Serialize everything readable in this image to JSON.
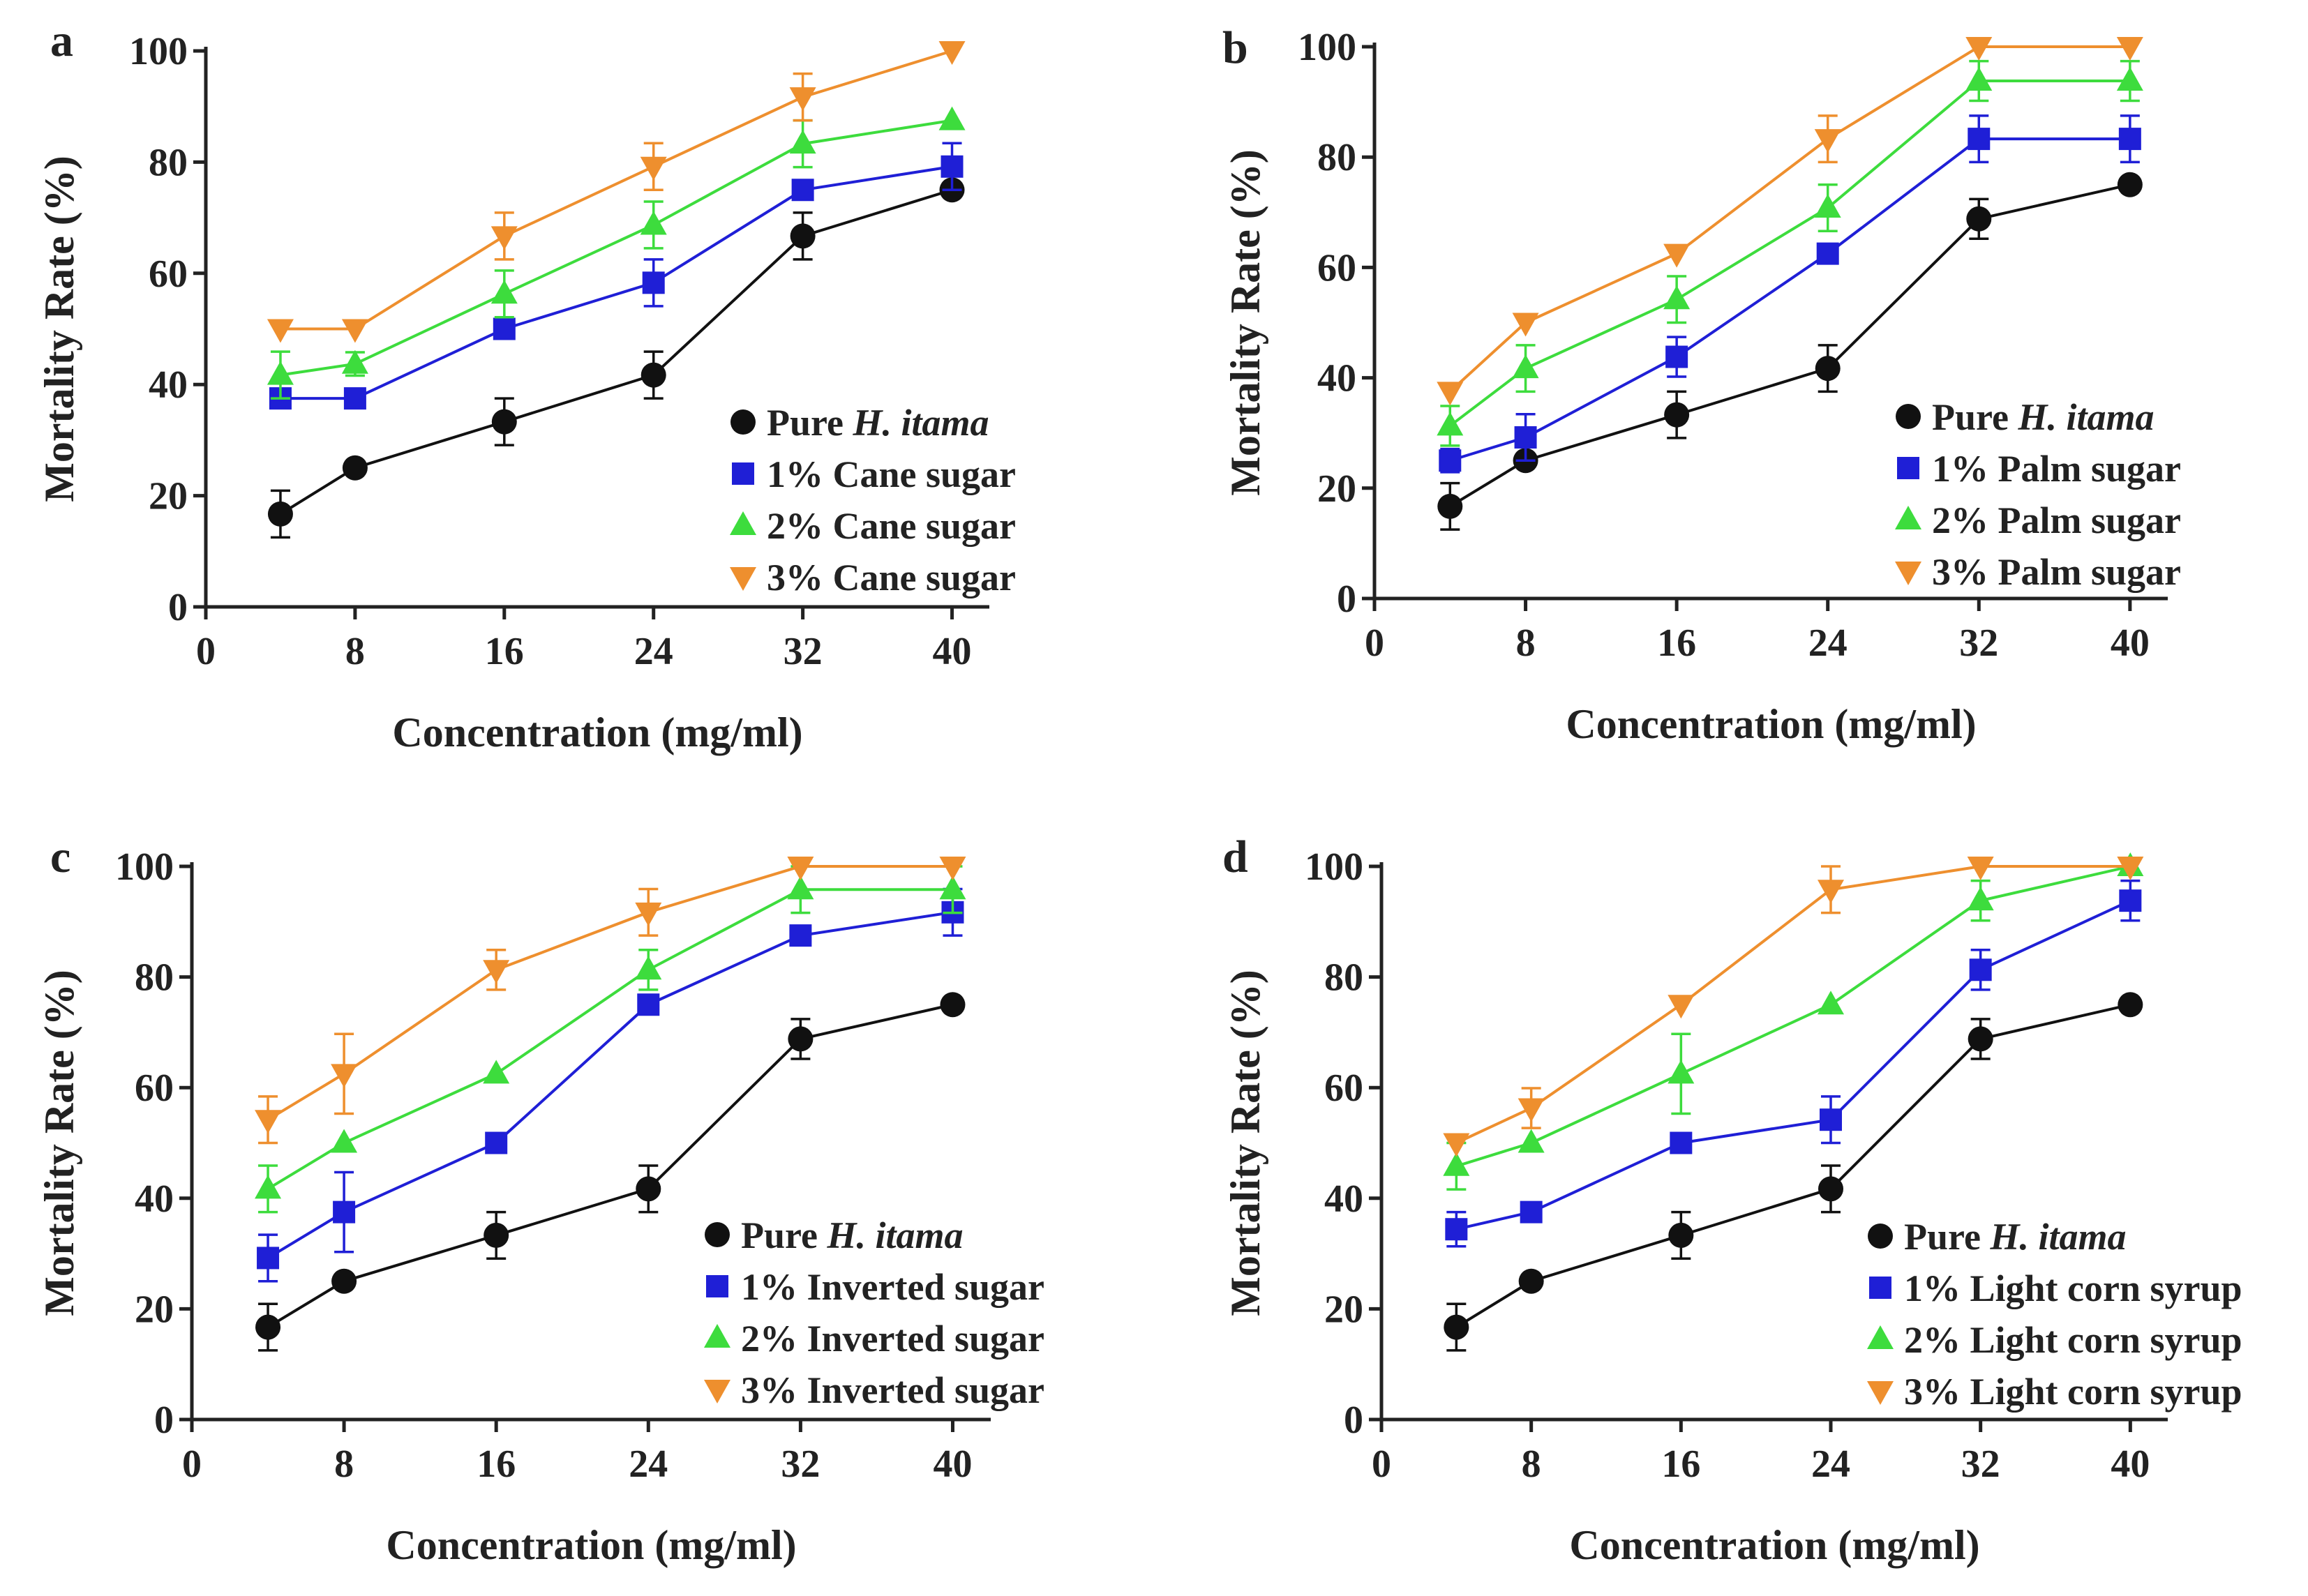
{
  "figure": {
    "panel_letters": [
      "a",
      "b",
      "c",
      "d"
    ]
  },
  "chart_data": [
    {
      "type": "line",
      "panel": "a",
      "xlabel": "Concentration (mg/ml)",
      "ylabel": "Mortality Rate (%)",
      "xlim": [
        0,
        42
      ],
      "ylim": [
        0,
        100
      ],
      "xticks": [
        0,
        8,
        16,
        24,
        32,
        40
      ],
      "yticks": [
        0,
        20,
        40,
        60,
        80,
        100
      ],
      "legend_position": "bottom-right",
      "x": [
        4,
        8,
        16,
        24,
        32,
        40
      ],
      "series": [
        {
          "name_prefix": "Pure ",
          "name_italic": "H. itama",
          "marker": "circle",
          "color": "#111111",
          "values": [
            16.7,
            25,
            33.3,
            41.7,
            66.7,
            75
          ],
          "errors": [
            4.2,
            0,
            4.2,
            4.2,
            4.2,
            0
          ]
        },
        {
          "name_prefix": "1% Cane sugar",
          "name_italic": "",
          "marker": "square",
          "color": "#1f1fd6",
          "values": [
            37.5,
            37.5,
            50,
            58.3,
            75,
            79.2
          ],
          "errors": [
            0,
            0,
            0,
            4.2,
            0,
            4.2
          ]
        },
        {
          "name_prefix": "2% Cane sugar",
          "name_italic": "",
          "marker": "triangle-up",
          "color": "#3ddc3d",
          "values": [
            41.7,
            43.7,
            56.3,
            68.7,
            83.3,
            87.5
          ],
          "errors": [
            4.2,
            2.1,
            4.2,
            4.2,
            4.2,
            0
          ]
        },
        {
          "name_prefix": "3% Cane sugar",
          "name_italic": "",
          "marker": "triangle-down",
          "color": "#ee8f2e",
          "values": [
            50,
            50,
            66.7,
            79.2,
            91.7,
            100
          ],
          "errors": [
            0,
            0,
            4.2,
            4.2,
            4.2,
            0
          ]
        }
      ]
    },
    {
      "type": "line",
      "panel": "b",
      "xlabel": "Concentration (mg/ml)",
      "ylabel": "Mortality Rate (%)",
      "xlim": [
        0,
        42
      ],
      "ylim": [
        0,
        100
      ],
      "xticks": [
        0,
        8,
        16,
        24,
        32,
        40
      ],
      "yticks": [
        0,
        20,
        40,
        60,
        80,
        100
      ],
      "legend_position": "bottom-right",
      "x": [
        4,
        8,
        16,
        24,
        32,
        40
      ],
      "series": [
        {
          "name_prefix": "Pure ",
          "name_italic": "H. itama",
          "marker": "circle",
          "color": "#111111",
          "values": [
            16.7,
            25,
            33.3,
            41.7,
            68.8,
            75
          ],
          "errors": [
            4.2,
            0,
            4.2,
            4.2,
            3.6,
            0
          ]
        },
        {
          "name_prefix": "1% Palm sugar",
          "name_italic": "",
          "marker": "square",
          "color": "#1f1fd6",
          "values": [
            25,
            29.2,
            43.8,
            62.5,
            83.3,
            83.3
          ],
          "errors": [
            2.1,
            4.2,
            3.6,
            0,
            4.2,
            4.2
          ]
        },
        {
          "name_prefix": "2% Palm sugar",
          "name_italic": "",
          "marker": "triangle-up",
          "color": "#3ddc3d",
          "values": [
            31.3,
            41.7,
            54.2,
            70.8,
            93.8,
            93.8
          ],
          "errors": [
            3.6,
            4.2,
            4.2,
            4.2,
            3.6,
            3.6
          ]
        },
        {
          "name_prefix": "3% Palm sugar",
          "name_italic": "",
          "marker": "triangle-down",
          "color": "#ee8f2e",
          "values": [
            37.5,
            50,
            62.5,
            83.3,
            100,
            100
          ],
          "errors": [
            0,
            0,
            0,
            4.2,
            0,
            0
          ]
        }
      ]
    },
    {
      "type": "line",
      "panel": "c",
      "xlabel": "Concentration (mg/ml)",
      "ylabel": "Mortality Rate (%)",
      "xlim": [
        0,
        42
      ],
      "ylim": [
        0,
        100
      ],
      "xticks": [
        0,
        8,
        16,
        24,
        32,
        40
      ],
      "yticks": [
        0,
        20,
        40,
        60,
        80,
        100
      ],
      "legend_position": "bottom-right",
      "x": [
        4,
        8,
        16,
        24,
        32,
        40
      ],
      "series": [
        {
          "name_prefix": "Pure ",
          "name_italic": "H. itama",
          "marker": "circle",
          "color": "#111111",
          "values": [
            16.7,
            25,
            33.3,
            41.7,
            68.8,
            75
          ],
          "errors": [
            4.2,
            0,
            4.2,
            4.2,
            3.6,
            0
          ]
        },
        {
          "name_prefix": "1% Inverted sugar",
          "name_italic": "",
          "marker": "square",
          "color": "#1f1fd6",
          "values": [
            29.2,
            37.5,
            50,
            75,
            87.5,
            91.7
          ],
          "errors": [
            4.2,
            7.2,
            0,
            0,
            0,
            4.2
          ]
        },
        {
          "name_prefix": "2% Inverted sugar",
          "name_italic": "",
          "marker": "triangle-up",
          "color": "#3ddc3d",
          "values": [
            41.7,
            50,
            62.5,
            81.3,
            95.8,
            95.8
          ],
          "errors": [
            4.2,
            0,
            0,
            3.6,
            4.2,
            4.2
          ]
        },
        {
          "name_prefix": "3% Inverted sugar",
          "name_italic": "",
          "marker": "triangle-down",
          "color": "#ee8f2e",
          "values": [
            54.2,
            62.5,
            81.3,
            91.7,
            100,
            100
          ],
          "errors": [
            4.2,
            7.2,
            3.6,
            4.2,
            0,
            0
          ]
        }
      ]
    },
    {
      "type": "line",
      "panel": "d",
      "xlabel": "Concentration (mg/ml)",
      "ylabel": "Mortality Rate (%)",
      "xlim": [
        0,
        42
      ],
      "ylim": [
        0,
        100
      ],
      "xticks": [
        0,
        8,
        16,
        24,
        32,
        40
      ],
      "yticks": [
        0,
        20,
        40,
        60,
        80,
        100
      ],
      "legend_position": "bottom-right",
      "x": [
        4,
        8,
        16,
        24,
        32,
        40
      ],
      "series": [
        {
          "name_prefix": "Pure ",
          "name_italic": "H. itama",
          "marker": "circle",
          "color": "#111111",
          "values": [
            16.7,
            25,
            33.3,
            41.7,
            68.8,
            75
          ],
          "errors": [
            4.2,
            0,
            4.2,
            4.2,
            3.6,
            0
          ]
        },
        {
          "name_prefix": "1% Light corn syrup",
          "name_italic": "",
          "marker": "square",
          "color": "#1f1fd6",
          "values": [
            34.4,
            37.5,
            50,
            54.2,
            81.3,
            93.8
          ],
          "errors": [
            3.1,
            0,
            0,
            4.2,
            3.6,
            3.6
          ]
        },
        {
          "name_prefix": "2% Light corn syrup",
          "name_italic": "",
          "marker": "triangle-up",
          "color": "#3ddc3d",
          "values": [
            45.8,
            50,
            62.5,
            75,
            93.8,
            100
          ],
          "errors": [
            4.2,
            0,
            7.2,
            0,
            3.6,
            0
          ]
        },
        {
          "name_prefix": "3% Light corn syrup",
          "name_italic": "",
          "marker": "triangle-down",
          "color": "#ee8f2e",
          "values": [
            50,
            56.3,
            75,
            95.8,
            100,
            100
          ],
          "errors": [
            0,
            3.6,
            0,
            4.2,
            0,
            0
          ]
        }
      ]
    }
  ]
}
